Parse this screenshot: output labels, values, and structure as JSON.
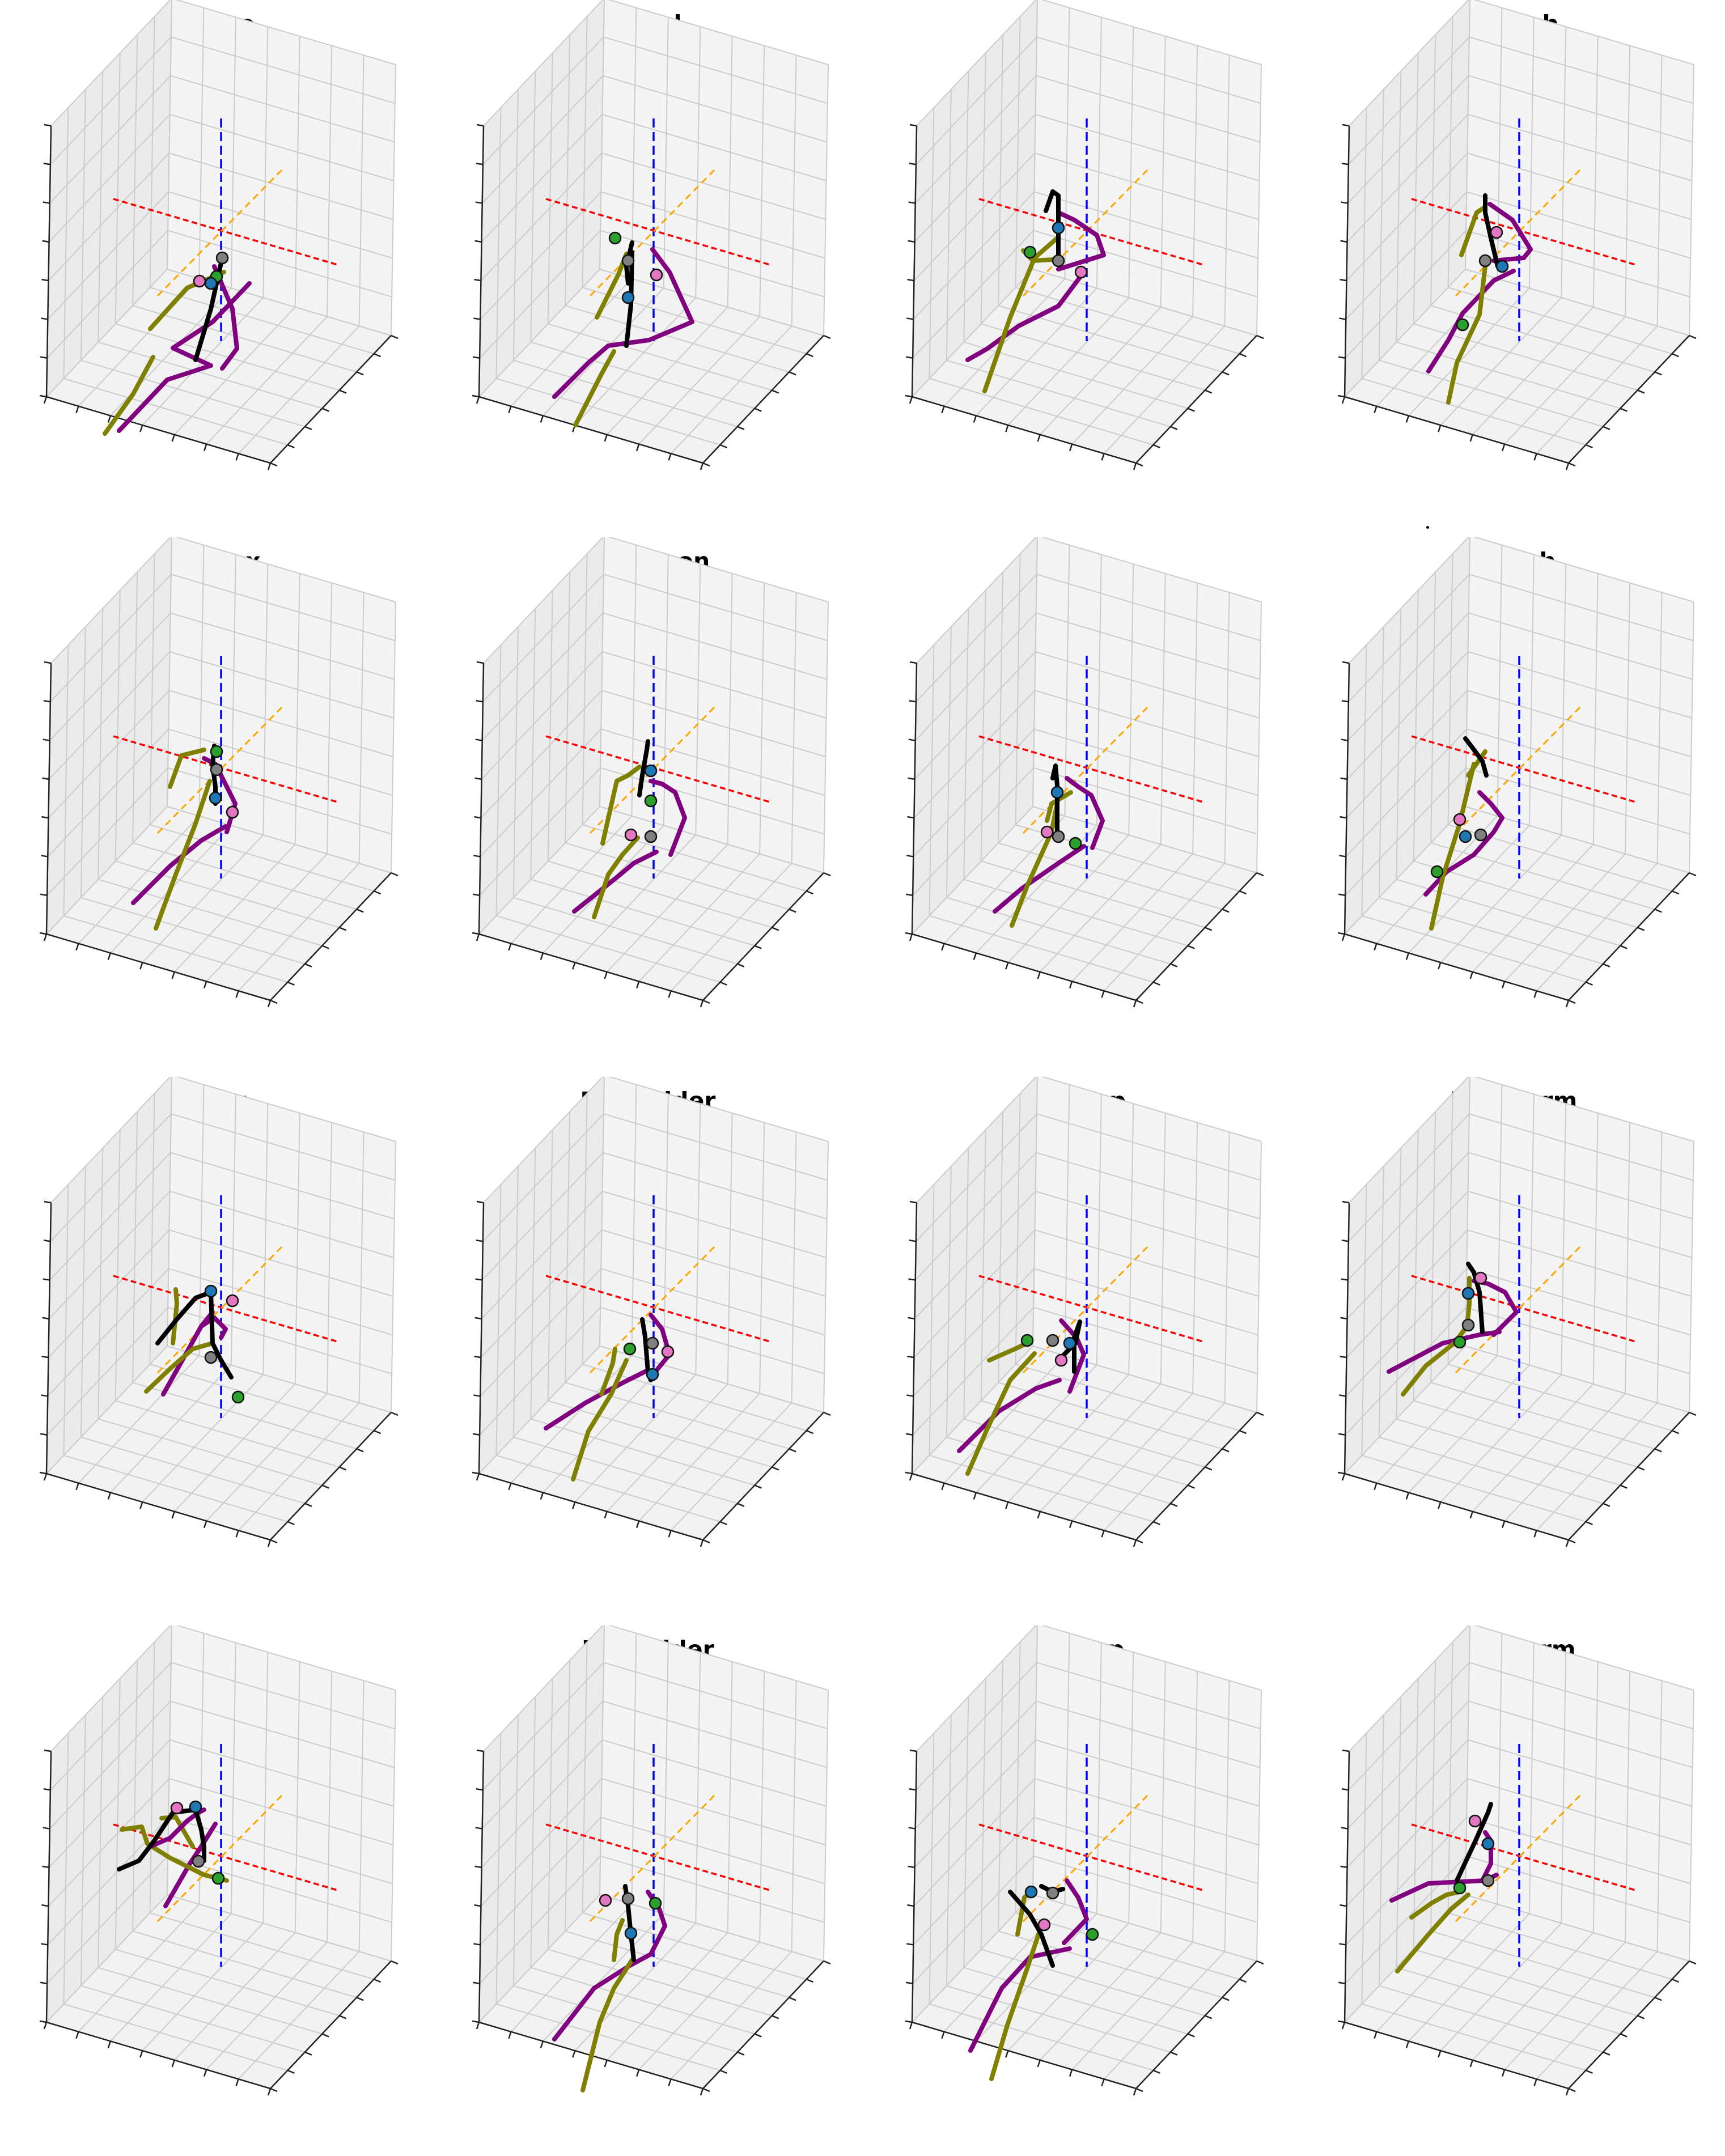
{
  "figure": {
    "columns": 4,
    "rows": 4
  },
  "style": {
    "pane_face_color": "#f2f2f2",
    "grid_color": "#cccccc",
    "axis_line_color": "#222222",
    "ref_axis_colors": {
      "x": "#ff0000",
      "y": "#ffa500",
      "z": "#0000ff"
    },
    "limb_colors": {
      "right_arm": "#800080",
      "left_arm": "#808000",
      "torso": "#000000",
      "legs": "#800080"
    },
    "marker_colors": [
      "#1f77b4",
      "#808080",
      "#2ca02c",
      "#e377c2"
    ]
  },
  "chart_data": [
    {
      "type": "scatter",
      "subtype": "3d-skeleton",
      "title": "UFace"
    },
    {
      "type": "scatter",
      "subtype": "3d-skeleton",
      "title": "Head"
    },
    {
      "type": "scatter",
      "subtype": "3d-skeleton",
      "title": "RHip"
    },
    {
      "type": "scatter",
      "subtype": "3d-skeleton",
      "title": "RThigh"
    },
    {
      "type": "scatter",
      "subtype": "3d-skeleton",
      "title": "Thorax"
    },
    {
      "type": "scatter",
      "subtype": "3d-skeleton",
      "title": "Abdomen"
    },
    {
      "type": "scatter",
      "subtype": "3d-skeleton",
      "title": "LHip"
    },
    {
      "type": "scatter",
      "subtype": "3d-skeleton",
      "title": "LThigh"
    },
    {
      "type": "scatter",
      "subtype": "3d-skeleton",
      "title": "RLeg"
    },
    {
      "type": "scatter",
      "subtype": "3d-skeleton",
      "title": "RShoulder"
    },
    {
      "type": "scatter",
      "subtype": "3d-skeleton",
      "title": "RBicep"
    },
    {
      "type": "scatter",
      "subtype": "3d-skeleton",
      "title": "RForearm"
    },
    {
      "type": "scatter",
      "subtype": "3d-skeleton",
      "title": "LLeg"
    },
    {
      "type": "scatter",
      "subtype": "3d-skeleton",
      "title": "LShoulder"
    },
    {
      "type": "scatter",
      "subtype": "3d-skeleton",
      "title": "LBicep"
    },
    {
      "type": "scatter",
      "subtype": "3d-skeleton",
      "title": "LForearm"
    }
  ]
}
